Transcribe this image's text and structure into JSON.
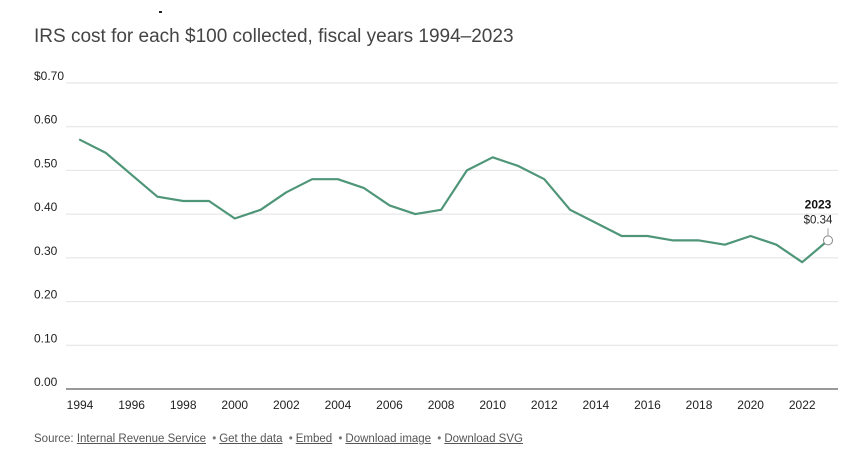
{
  "title": "IRS cost for each $100 collected, fiscal years 1994–2023",
  "source": {
    "prefix": "Source:",
    "links": [
      "Internal Revenue Service",
      "Get the data",
      "Embed",
      "Download image",
      "Download SVG"
    ],
    "separator": "•"
  },
  "colors": {
    "line": "#4f9679",
    "grid": "#e2e2e2",
    "text": "#333333"
  },
  "chart_data": {
    "type": "line",
    "title": "IRS cost for each $100 collected, fiscal years 1994–2023",
    "xlabel": "",
    "ylabel": "",
    "ylim": [
      0,
      0.7
    ],
    "xlim": [
      1994,
      2023
    ],
    "grid": true,
    "legend": "none",
    "y_tick_labels": [
      "0.00",
      "0.10",
      "0.20",
      "0.30",
      "0.40",
      "0.50",
      "0.60",
      "$0.70"
    ],
    "x_tick_labels": [
      "1994",
      "1996",
      "1998",
      "2000",
      "2002",
      "2004",
      "2006",
      "2008",
      "2010",
      "2012",
      "2014",
      "2016",
      "2018",
      "2020",
      "2022"
    ],
    "series": [
      {
        "x": [
          1994,
          1995,
          1996,
          1997,
          1998,
          1999,
          2000,
          2001,
          2002,
          2003,
          2004,
          2005,
          2006,
          2007,
          2008,
          2009,
          2010,
          2011,
          2012,
          2013,
          2014,
          2015,
          2016,
          2017,
          2018,
          2019,
          2020,
          2021,
          2022,
          2023
        ],
        "values": [
          0.57,
          0.54,
          0.49,
          0.44,
          0.43,
          0.43,
          0.39,
          0.41,
          0.45,
          0.48,
          0.48,
          0.46,
          0.42,
          0.4,
          0.41,
          0.5,
          0.53,
          0.51,
          0.48,
          0.41,
          0.38,
          0.35,
          0.35,
          0.34,
          0.34,
          0.33,
          0.35,
          0.33,
          0.29,
          0.34
        ]
      }
    ],
    "highlight": {
      "x": 2023,
      "y": 0.34,
      "label_year": "2023",
      "label_value": "$0.34"
    }
  }
}
